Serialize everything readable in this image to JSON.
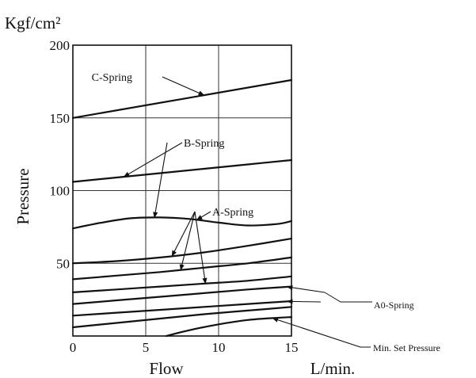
{
  "chart_data": {
    "type": "line",
    "unit_label": "Kgf/cm²",
    "xlabel": "Flow",
    "xunit": "L/min.",
    "ylabel": "Pressure",
    "xlim": [
      0,
      15
    ],
    "ylim": [
      0,
      200
    ],
    "xticks": [
      "0",
      "5",
      "10",
      "15"
    ],
    "yticks": [
      "50",
      "100",
      "150",
      "200"
    ],
    "grid": true,
    "series": [
      {
        "name": "C-Spring",
        "x": [
          0,
          15
        ],
        "y": [
          150,
          176
        ]
      },
      {
        "name": "B-Spring",
        "x": [
          0,
          3,
          6,
          9,
          12,
          15
        ],
        "y": [
          106,
          109,
          112,
          115,
          118,
          121
        ]
      },
      {
        "name": "A-Spring",
        "x": [
          0,
          2,
          4,
          6,
          8,
          10,
          12,
          14,
          15
        ],
        "y": [
          74,
          78,
          81,
          81.5,
          80.5,
          78,
          76,
          77,
          79
        ]
      },
      {
        "name": "A-Spring",
        "x": [
          0,
          3,
          6,
          9,
          12,
          15
        ],
        "y": [
          50,
          51.5,
          54,
          57.5,
          62,
          67
        ]
      },
      {
        "name": "A-Spring",
        "x": [
          0,
          3,
          6,
          9,
          12,
          15
        ],
        "y": [
          39,
          41.5,
          44,
          47,
          50,
          54
        ]
      },
      {
        "name": "A-Spring",
        "x": [
          0,
          3,
          6,
          9,
          12,
          15
        ],
        "y": [
          30,
          32,
          34,
          36,
          38,
          41
        ]
      },
      {
        "name": "A0-Spring",
        "x": [
          0,
          3,
          6,
          9,
          12,
          15
        ],
        "y": [
          22,
          24.5,
          27,
          29.5,
          32,
          34
        ]
      },
      {
        "name": "A0-Spring",
        "x": [
          0,
          3,
          6,
          9,
          12,
          15
        ],
        "y": [
          14,
          16,
          18,
          20,
          22,
          24
        ]
      },
      {
        "name": "A0-Spring",
        "x": [
          0,
          3,
          6,
          9,
          12,
          15
        ],
        "y": [
          6,
          9,
          12,
          15,
          17.5,
          20
        ]
      },
      {
        "name": "Min. Set Pressure",
        "x": [
          6.4,
          8,
          10,
          12,
          14,
          15
        ],
        "y": [
          0,
          4,
          8,
          11,
          12.5,
          13
        ]
      }
    ],
    "annotations": [
      {
        "text": "C-Spring",
        "points_to_series": [
          0
        ]
      },
      {
        "text": "B-Spring",
        "points_to_series": [
          1,
          2
        ]
      },
      {
        "text": "A-Spring",
        "points_to_series": [
          2,
          3,
          4,
          5
        ]
      },
      {
        "text": "A0-Spring",
        "points_to_series": [
          6,
          7
        ]
      },
      {
        "text": "Min. Set Pressure",
        "points_to_series": [
          9
        ]
      }
    ]
  }
}
